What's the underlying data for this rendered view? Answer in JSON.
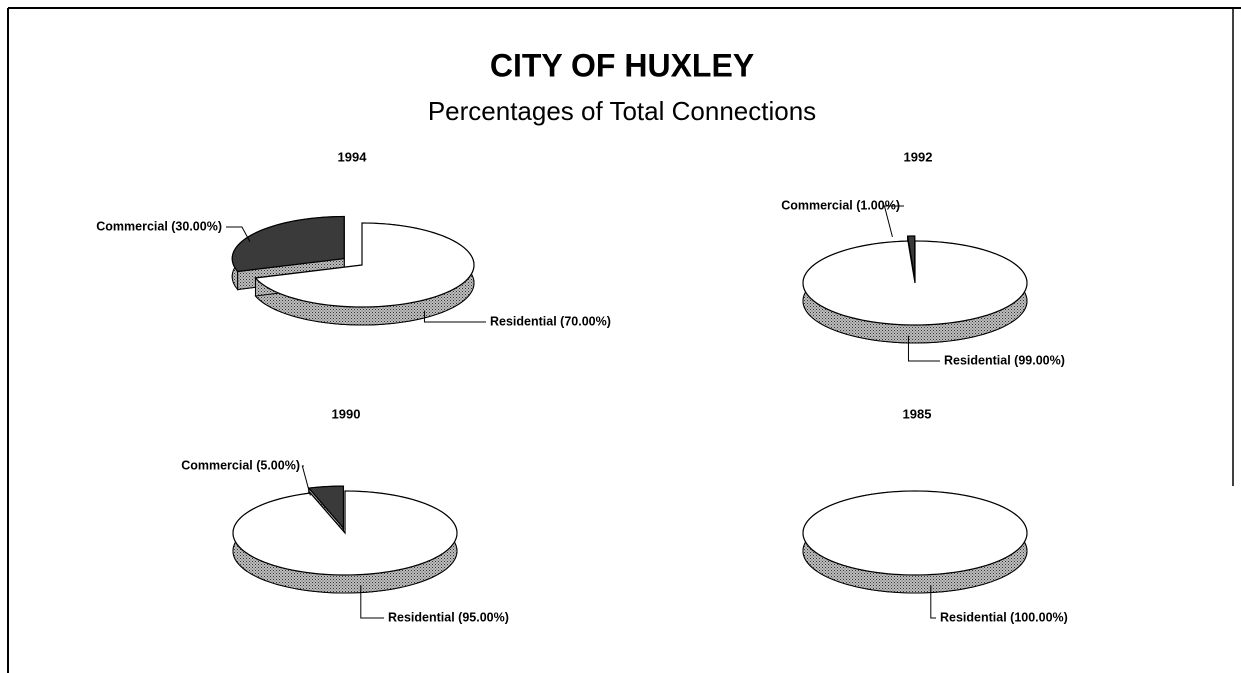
{
  "title": "CITY OF HUXLEY",
  "subtitle": "Percentages of Total Connections",
  "chart_data": [
    {
      "type": "pie",
      "title": "1994",
      "values": [
        30,
        70
      ],
      "value_labels": [
        "Commercial (30.00%)",
        "Residential (70.00%)"
      ],
      "colors": [
        "#3a3a3a",
        "#ffffff"
      ]
    },
    {
      "type": "pie",
      "title": "1992",
      "values": [
        1,
        99
      ],
      "value_labels": [
        "Commercial (1.00%)",
        "Residential (99.00%)"
      ],
      "colors": [
        "#3a3a3a",
        "#ffffff"
      ]
    },
    {
      "type": "pie",
      "title": "1990",
      "values": [
        5,
        95
      ],
      "value_labels": [
        "Commercial (5.00%)",
        "Residential (95.00%)"
      ],
      "colors": [
        "#3a3a3a",
        "#ffffff"
      ]
    },
    {
      "type": "pie",
      "title": "1985",
      "values": [
        100
      ],
      "value_labels": [
        "Residential (100.00%)"
      ],
      "colors": [
        "#ffffff"
      ]
    }
  ]
}
